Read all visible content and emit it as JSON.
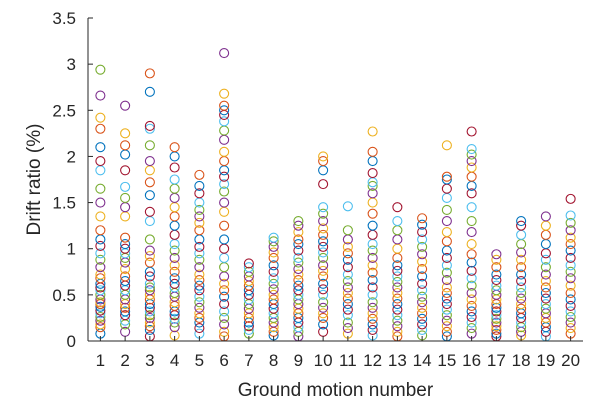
{
  "chart_data": {
    "type": "scatter",
    "title": "",
    "xlabel": "Ground motion number",
    "ylabel": "Drift ratio (%)",
    "xlim": [
      0.5,
      20.5
    ],
    "ylim": [
      0,
      3.5
    ],
    "xticks": [
      "1",
      "2",
      "3",
      "4",
      "5",
      "6",
      "7",
      "8",
      "9",
      "10",
      "11",
      "12",
      "13",
      "14",
      "15",
      "16",
      "17",
      "18",
      "19",
      "20"
    ],
    "yticks": [
      "0",
      "0.5",
      "1",
      "1.5",
      "2",
      "2.5",
      "3",
      "3.5"
    ],
    "grid": false,
    "legend": "none",
    "marker": "open-circle",
    "palette": [
      "#0072BD",
      "#D95319",
      "#EDB120",
      "#7E2F8E",
      "#77AC30",
      "#4DBEEE",
      "#A2142F"
    ],
    "series": [
      {
        "x": 1,
        "values": [
          0.08,
          0.15,
          0.18,
          0.22,
          0.26,
          0.3,
          0.33,
          0.37,
          0.4,
          0.42,
          0.45,
          0.5,
          0.55,
          0.58,
          0.62,
          0.68,
          0.72,
          0.8,
          0.88,
          0.95,
          1.03,
          1.1,
          1.2,
          1.35,
          1.5,
          1.65,
          1.85,
          1.95,
          2.1,
          2.3,
          2.42,
          2.66,
          2.94
        ]
      },
      {
        "x": 2,
        "values": [
          0.1,
          0.18,
          0.22,
          0.28,
          0.32,
          0.36,
          0.4,
          0.45,
          0.5,
          0.55,
          0.6,
          0.65,
          0.7,
          0.78,
          0.85,
          0.9,
          0.95,
          1.0,
          1.05,
          1.12,
          1.35,
          1.45,
          1.55,
          1.67,
          1.85,
          2.02,
          2.12,
          2.25,
          2.55
        ]
      },
      {
        "x": 3,
        "values": [
          0.05,
          0.12,
          0.16,
          0.2,
          0.25,
          0.28,
          0.32,
          0.36,
          0.4,
          0.45,
          0.5,
          0.55,
          0.58,
          0.62,
          0.7,
          0.75,
          0.85,
          0.92,
          0.98,
          1.1,
          1.3,
          1.4,
          1.58,
          1.72,
          1.85,
          1.95,
          2.12,
          2.3,
          2.33,
          2.7,
          2.9
        ]
      },
      {
        "x": 4,
        "values": [
          0.06,
          0.15,
          0.2,
          0.24,
          0.28,
          0.32,
          0.38,
          0.42,
          0.48,
          0.52,
          0.58,
          0.62,
          0.68,
          0.75,
          0.82,
          0.9,
          0.98,
          1.05,
          1.15,
          1.25,
          1.35,
          1.45,
          1.55,
          1.65,
          1.75,
          1.88,
          2.0,
          2.1
        ]
      },
      {
        "x": 5,
        "values": [
          0.08,
          0.14,
          0.2,
          0.25,
          0.3,
          0.36,
          0.42,
          0.48,
          0.55,
          0.6,
          0.66,
          0.72,
          0.8,
          0.88,
          0.95,
          1.02,
          1.1,
          1.2,
          1.28,
          1.35,
          1.42,
          1.5,
          1.6,
          1.68,
          1.8
        ]
      },
      {
        "x": 6,
        "values": [
          0.05,
          0.1,
          0.18,
          0.25,
          0.32,
          0.4,
          0.48,
          0.55,
          0.62,
          0.7,
          0.8,
          0.9,
          1.0,
          1.1,
          1.25,
          1.4,
          1.5,
          1.62,
          1.7,
          1.78,
          1.85,
          1.95,
          2.05,
          2.18,
          2.28,
          2.38,
          2.45,
          2.5,
          2.55,
          2.68,
          3.12
        ]
      },
      {
        "x": 7,
        "values": [
          0.08,
          0.12,
          0.16,
          0.2,
          0.25,
          0.3,
          0.35,
          0.4,
          0.45,
          0.5,
          0.55,
          0.6,
          0.65,
          0.7,
          0.75,
          0.8,
          0.84
        ]
      },
      {
        "x": 8,
        "values": [
          0.06,
          0.1,
          0.15,
          0.2,
          0.25,
          0.3,
          0.35,
          0.4,
          0.45,
          0.5,
          0.56,
          0.62,
          0.68,
          0.75,
          0.82,
          0.9,
          0.96,
          1.02,
          1.08,
          1.12
        ]
      },
      {
        "x": 9,
        "values": [
          0.05,
          0.1,
          0.15,
          0.2,
          0.25,
          0.3,
          0.35,
          0.4,
          0.45,
          0.5,
          0.55,
          0.6,
          0.66,
          0.72,
          0.78,
          0.85,
          0.9,
          0.98,
          1.05,
          1.1,
          1.18,
          1.25,
          1.3
        ]
      },
      {
        "x": 10,
        "values": [
          0.1,
          0.18,
          0.25,
          0.3,
          0.36,
          0.42,
          0.5,
          0.56,
          0.62,
          0.7,
          0.76,
          0.82,
          0.9,
          0.96,
          1.02,
          1.08,
          1.15,
          1.22,
          1.3,
          1.38,
          1.45,
          1.7,
          1.85,
          1.95,
          2.0
        ]
      },
      {
        "x": 11,
        "values": [
          0.08,
          0.14,
          0.2,
          0.28,
          0.34,
          0.4,
          0.46,
          0.52,
          0.58,
          0.65,
          0.72,
          0.8,
          0.88,
          0.95,
          1.02,
          1.1,
          1.2,
          1.46
        ]
      },
      {
        "x": 12,
        "values": [
          0.06,
          0.12,
          0.18,
          0.24,
          0.3,
          0.36,
          0.42,
          0.5,
          0.58,
          0.66,
          0.74,
          0.82,
          0.9,
          0.98,
          1.05,
          1.15,
          1.25,
          1.38,
          1.5,
          1.6,
          1.68,
          1.72,
          1.82,
          1.95,
          2.05,
          2.27
        ]
      },
      {
        "x": 13,
        "values": [
          0.05,
          0.1,
          0.16,
          0.22,
          0.28,
          0.34,
          0.4,
          0.46,
          0.52,
          0.58,
          0.64,
          0.7,
          0.76,
          0.82,
          0.9,
          1.0,
          1.1,
          1.2,
          1.3,
          1.45
        ]
      },
      {
        "x": 14,
        "values": [
          0.06,
          0.12,
          0.18,
          0.24,
          0.3,
          0.36,
          0.42,
          0.48,
          0.55,
          0.62,
          0.7,
          0.78,
          0.86,
          0.94,
          1.02,
          1.1,
          1.18,
          1.26,
          1.33
        ]
      },
      {
        "x": 15,
        "values": [
          0.05,
          0.1,
          0.16,
          0.22,
          0.28,
          0.34,
          0.4,
          0.46,
          0.52,
          0.58,
          0.66,
          0.74,
          0.82,
          0.9,
          0.98,
          1.08,
          1.18,
          1.3,
          1.42,
          1.55,
          1.65,
          1.75,
          1.78,
          2.12
        ]
      },
      {
        "x": 16,
        "values": [
          0.08,
          0.14,
          0.2,
          0.26,
          0.32,
          0.38,
          0.45,
          0.52,
          0.6,
          0.68,
          0.76,
          0.85,
          0.94,
          1.05,
          1.18,
          1.3,
          1.45,
          1.6,
          1.68,
          1.78,
          1.88,
          1.95,
          2.02,
          2.08,
          2.27
        ]
      },
      {
        "x": 17,
        "values": [
          0.05,
          0.08,
          0.12,
          0.16,
          0.2,
          0.24,
          0.28,
          0.32,
          0.36,
          0.4,
          0.45,
          0.5,
          0.55,
          0.6,
          0.66,
          0.72,
          0.8,
          0.88,
          0.94
        ]
      },
      {
        "x": 18,
        "values": [
          0.06,
          0.1,
          0.15,
          0.2,
          0.25,
          0.3,
          0.35,
          0.4,
          0.46,
          0.52,
          0.58,
          0.65,
          0.72,
          0.8,
          0.88,
          0.96,
          1.05,
          1.15,
          1.25,
          1.3
        ]
      },
      {
        "x": 19,
        "values": [
          0.05,
          0.1,
          0.15,
          0.2,
          0.25,
          0.3,
          0.35,
          0.4,
          0.46,
          0.52,
          0.58,
          0.65,
          0.72,
          0.8,
          0.88,
          0.95,
          1.05,
          1.15,
          1.25,
          1.35
        ]
      },
      {
        "x": 20,
        "values": [
          0.08,
          0.14,
          0.2,
          0.26,
          0.32,
          0.38,
          0.45,
          0.52,
          0.6,
          0.68,
          0.75,
          0.82,
          0.9,
          0.98,
          1.05,
          1.12,
          1.2,
          1.28,
          1.36,
          1.54
        ]
      }
    ]
  }
}
